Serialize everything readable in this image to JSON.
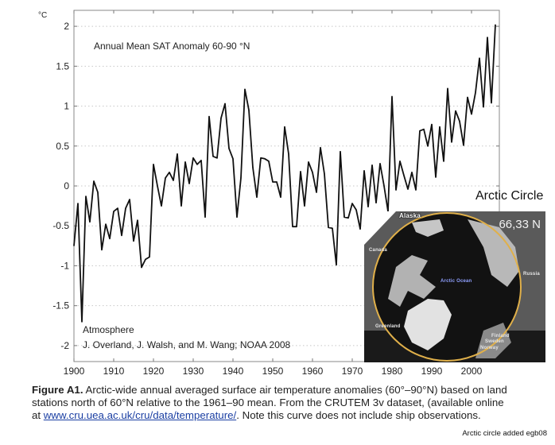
{
  "chart_data": {
    "type": "line",
    "title": "Annual Mean SAT Anomaly 60-90 °N",
    "xlabel": "",
    "ylabel": "°C",
    "xlim": [
      1900,
      2007
    ],
    "ylim": [
      -2.2,
      2.2
    ],
    "grid": true,
    "grid_style": "dotted horizontal",
    "x_ticks": [
      1900,
      1910,
      1920,
      1930,
      1940,
      1950,
      1960,
      1970,
      1980,
      1990,
      2000
    ],
    "x_tick_labels": [
      "1900",
      "1910",
      "1920",
      "1930",
      "1940",
      "1950",
      "1960",
      "1970",
      "1980",
      "1990",
      "2000"
    ],
    "y_ticks": [
      -2,
      -1.5,
      -1,
      -0.5,
      0,
      0.5,
      1,
      1.5,
      2
    ],
    "y_tick_labels": [
      "-2",
      "-1.5",
      "-1",
      "-0.5",
      "0",
      "0.5",
      "1",
      "1.5",
      "2"
    ],
    "annotations": [
      "Atmosphere",
      "J. Overland, J. Walsh, and M. Wang; NOAA 2008"
    ],
    "series": [
      {
        "name": "Annual Mean SAT Anomaly",
        "color": "#111111",
        "x_start": 1900,
        "values": [
          -0.75,
          -0.22,
          -1.7,
          -0.13,
          -0.45,
          0.06,
          -0.08,
          -0.8,
          -0.48,
          -0.66,
          -0.32,
          -0.28,
          -0.62,
          -0.28,
          -0.17,
          -0.69,
          -0.43,
          -1.02,
          -0.92,
          -0.89,
          0.27,
          0.0,
          -0.25,
          0.1,
          0.17,
          0.07,
          0.4,
          -0.25,
          0.3,
          0.03,
          0.35,
          0.27,
          0.32,
          -0.39,
          0.87,
          0.37,
          0.35,
          0.85,
          1.03,
          0.47,
          0.34,
          -0.39,
          0.1,
          1.21,
          0.95,
          0.23,
          -0.14,
          0.35,
          0.34,
          0.31,
          0.05,
          0.05,
          -0.14,
          0.74,
          0.4,
          -0.51,
          -0.51,
          0.18,
          -0.25,
          0.3,
          0.17,
          -0.08,
          0.48,
          0.15,
          -0.52,
          -0.53,
          -0.99,
          0.43,
          -0.39,
          -0.4,
          -0.22,
          -0.3,
          -0.54,
          0.19,
          -0.26,
          0.26,
          -0.21,
          0.28,
          0.0,
          -0.32,
          1.12,
          -0.05,
          0.31,
          0.13,
          -0.04,
          0.17,
          -0.05,
          0.69,
          0.71,
          0.5,
          0.77,
          0.11,
          0.74,
          0.31,
          1.22,
          0.55,
          0.94,
          0.81,
          0.51,
          1.11,
          0.9,
          1.17,
          1.6,
          0.99,
          1.86,
          1.04,
          2.02
        ]
      }
    ]
  },
  "inset": {
    "title": "Arctic Circle",
    "latitude_label": "66,33 N",
    "labels": {
      "alaska": "Alaska",
      "canada": "Canada",
      "arctic_ocean": "Arctic Ocean",
      "russia": "Russia",
      "greenland": "Greenland",
      "finland": "Finland",
      "sweden": "Sweden",
      "norway": "Norway"
    },
    "circle_color": "#e0b04a",
    "ocean_label_color": "#8fa0ff"
  },
  "caption": {
    "figure_label": "Figure A1.",
    "text_1": " Arctic-wide annual averaged surface air temperature anomalies (60°–90°N) based on land stations north of 60°N relative to the 1961–90 mean. From the CRUTEM 3v dataset, (available online at ",
    "link": "www.cru.uea.ac.uk/cru/data/temperature/",
    "text_2": ". Note this curve does not include ship observations."
  },
  "credit": "Arctic circle added egb08"
}
